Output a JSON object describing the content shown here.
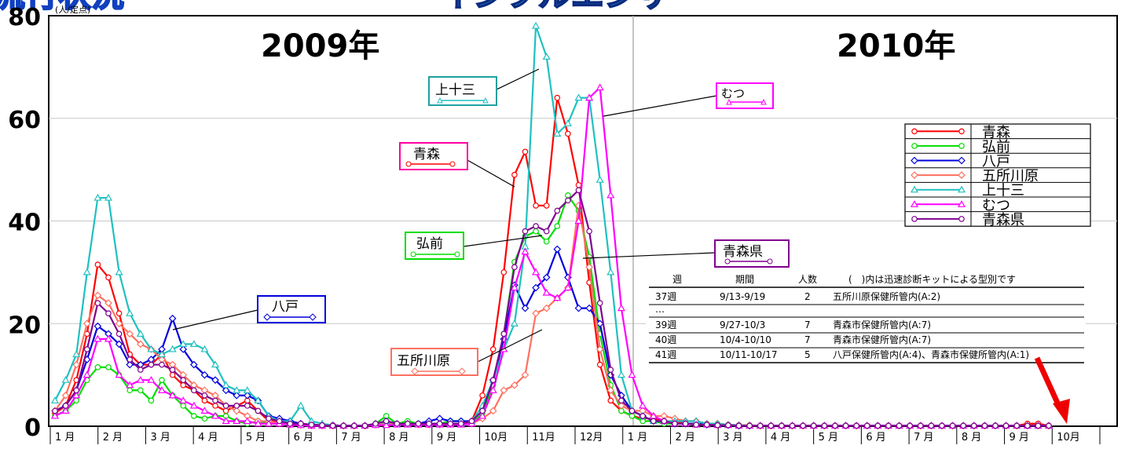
{
  "header": {
    "banner_left": "流行状況",
    "banner_right": "インフルエンザ"
  },
  "chart_data": {
    "type": "line",
    "ylabel": "(人/定点)",
    "ylim": [
      0,
      80
    ],
    "yticks": [
      0,
      20,
      40,
      60,
      80
    ],
    "grid": true,
    "legend_position": "right",
    "years": [
      "2009年",
      "2010年"
    ],
    "months": [
      "1 月",
      "2 月",
      "3 月",
      "4 月",
      "5 月",
      "6 月",
      "7 月",
      "8 月",
      "9 月",
      "10月",
      "11月",
      "12月",
      "1 月",
      "2 月",
      "3 月",
      "4 月",
      "5 月",
      "6 月",
      "7 月",
      "8 月",
      "9 月",
      "10月"
    ],
    "x_weeks": [
      1,
      2,
      3,
      4,
      5,
      6,
      7,
      8,
      9,
      10,
      11,
      12,
      13,
      14,
      15,
      16,
      17,
      18,
      19,
      20,
      21,
      22,
      23,
      24,
      25,
      26,
      27,
      28,
      29,
      30,
      31,
      32,
      33,
      34,
      35,
      36,
      37,
      38,
      39,
      40,
      41,
      42,
      43,
      44,
      45,
      46,
      47,
      48,
      49,
      50,
      51,
      52,
      53,
      54,
      55,
      56,
      57,
      58,
      59,
      60,
      61,
      62,
      63,
      64,
      65,
      66,
      67,
      68,
      69,
      70,
      71,
      72,
      73,
      74,
      75,
      76,
      77,
      78,
      79,
      80,
      81,
      82,
      83,
      84,
      85,
      86,
      87,
      88,
      89,
      90,
      91,
      92,
      93,
      94
    ],
    "series": [
      {
        "name": "青森",
        "color": "#ff0000",
        "marker": "circle",
        "values": [
          2.5,
          4,
          9,
          18,
          31.5,
          29,
          22,
          14,
          12,
          12,
          14,
          10,
          8,
          7,
          5,
          4,
          3,
          4,
          5,
          3,
          1,
          1,
          0.5,
          0.5,
          0.3,
          0.2,
          0.2,
          0.1,
          0.1,
          0.1,
          0.2,
          0.5,
          0.5,
          0.5,
          0.5,
          0.5,
          0.5,
          0.5,
          0.5,
          1,
          6,
          15,
          30,
          49,
          53.5,
          43,
          43,
          64,
          57,
          47,
          28,
          12,
          5,
          3,
          2,
          1.5,
          1.5,
          1,
          1,
          0.5,
          0.5,
          0.3,
          0.3,
          0.2,
          0.2,
          0.1,
          0.1,
          0.1,
          0.1,
          0.1,
          0.1,
          0.1,
          0.1,
          0.1,
          0.1,
          0.1,
          0.1,
          0.1,
          0.1,
          0.1,
          0.1,
          0.1,
          0.1,
          0.1,
          0.1,
          0.1,
          0.1,
          0.1,
          0.1,
          0.1,
          0.1,
          0.5,
          0.5,
          0.1
        ]
      },
      {
        "name": "弘前",
        "color": "#00dd00",
        "marker": "circle",
        "values": [
          2,
          3,
          5,
          9,
          11.5,
          11.5,
          10,
          7,
          7,
          5,
          9,
          6,
          4,
          2,
          1.5,
          2,
          2,
          1,
          0.5,
          1,
          0.5,
          0.5,
          0.3,
          0.2,
          0.1,
          0.1,
          0.1,
          0.1,
          0.1,
          0.1,
          0.5,
          2,
          0.5,
          1,
          0.5,
          0.5,
          0.5,
          1,
          1,
          0.5,
          2.5,
          8,
          18,
          32,
          37,
          38,
          36,
          39,
          45,
          42,
          33,
          18,
          8,
          3,
          2,
          1,
          1,
          0.5,
          0.5,
          0.5,
          0.5,
          0.5,
          0.5,
          0.3,
          0.2,
          0.2,
          0.1,
          0.1,
          0.1,
          0.1,
          0.1,
          0.1,
          0.1,
          0.1,
          0.1,
          0.1,
          0.1,
          0.1,
          0.1,
          0.1,
          0.1,
          0.1,
          0.1,
          0.1,
          0.1,
          0.1,
          0.1,
          0.1,
          0.1,
          0.1,
          0.1,
          0.1,
          0.1,
          0.1
        ]
      },
      {
        "name": "八戸",
        "color": "#0000dd",
        "marker": "diamond",
        "values": [
          3,
          4,
          7,
          13,
          19.5,
          18,
          16,
          12,
          12,
          13,
          15,
          21,
          15,
          12,
          10,
          9,
          7,
          6,
          6,
          5,
          2,
          1.5,
          1,
          0.5,
          0.3,
          0.2,
          0.2,
          0.1,
          0.1,
          0.1,
          0.5,
          1,
          0.5,
          0.5,
          0.5,
          1,
          1.5,
          1,
          1,
          1,
          3,
          9,
          17,
          27.5,
          23,
          27,
          29,
          34.5,
          29,
          23,
          23,
          20,
          10,
          6,
          3,
          2,
          1,
          1,
          0.5,
          0.5,
          0.5,
          0.3,
          0.3,
          0.2,
          0.1,
          0.1,
          0.1,
          0.1,
          0.1,
          0.1,
          0.1,
          0.1,
          0.1,
          0.1,
          0.1,
          0.1,
          0.1,
          0.1,
          0.1,
          0.1,
          0.1,
          0.1,
          0.1,
          0.1,
          0.1,
          0.1,
          0.1,
          0.1,
          0.1,
          0.1,
          0.1,
          0.1,
          0.1,
          0.1
        ]
      },
      {
        "name": "五所川原",
        "color": "#ff7060",
        "marker": "diamond",
        "values": [
          3,
          6,
          12,
          20,
          25.5,
          24,
          20,
          18,
          16,
          15,
          13,
          12,
          10,
          8,
          7,
          6,
          4,
          3,
          2,
          1,
          1,
          0.5,
          0.3,
          0.2,
          0.1,
          0.1,
          0.1,
          0.1,
          0.1,
          0.1,
          0.5,
          0.5,
          0.5,
          0.5,
          0.3,
          0.3,
          0.3,
          0.5,
          0.5,
          0.5,
          1.5,
          3,
          7,
          8,
          10,
          22,
          23,
          25,
          27,
          43,
          31,
          15,
          7,
          4,
          3,
          3,
          2,
          2,
          1.5,
          1,
          1,
          0.5,
          0.5,
          0.3,
          0.2,
          0.2,
          0.1,
          0.1,
          0.1,
          0.1,
          0.1,
          0.1,
          0.1,
          0.1,
          0.1,
          0.1,
          0.1,
          0.1,
          0.1,
          0.1,
          0.1,
          0.1,
          0.1,
          0.1,
          0.1,
          0.1,
          0.1,
          0.1,
          0.1,
          0.1,
          0.1,
          0.1,
          0.1,
          0.1
        ]
      },
      {
        "name": "上十三",
        "color": "#20c0c0",
        "marker": "triangle",
        "values": [
          5,
          9,
          14,
          30,
          44.5,
          44.5,
          30,
          22,
          18,
          15,
          14,
          15,
          16,
          16,
          15,
          12,
          8,
          7,
          7,
          5,
          2,
          1,
          1,
          4,
          1,
          0.5,
          0.2,
          0.1,
          0.1,
          0.1,
          0.5,
          1,
          0.5,
          0.5,
          0.5,
          0.5,
          0.5,
          0.5,
          0.5,
          1,
          4,
          9,
          15,
          20,
          35,
          78,
          72,
          57,
          59,
          64,
          64,
          48,
          30,
          10,
          3,
          2,
          1,
          1,
          1,
          1,
          1,
          0.5,
          0.5,
          0.3,
          0.2,
          0.1,
          0.1,
          0.1,
          0.1,
          0.1,
          0.1,
          0.1,
          0.1,
          0.1,
          0.1,
          0.1,
          0.1,
          0.1,
          0.1,
          0.1,
          0.1,
          0.1,
          0.1,
          0.1,
          0.1,
          0.1,
          0.1,
          0.1,
          0.1,
          0.1,
          0.1,
          0.1,
          0.1,
          0.1
        ]
      },
      {
        "name": "むつ",
        "color": "#ff00ff",
        "marker": "triangle",
        "values": [
          2,
          3,
          6,
          10,
          17,
          17,
          10,
          8,
          9,
          9,
          7,
          6,
          5,
          4,
          3,
          2,
          1,
          1,
          1,
          0.5,
          0.5,
          0.5,
          0.3,
          0.2,
          0.1,
          0.1,
          0.1,
          0.1,
          0.1,
          0.1,
          0.2,
          0.2,
          0.3,
          0.3,
          0.3,
          0.3,
          0.3,
          0.3,
          0.3,
          0.5,
          2,
          7,
          15,
          27,
          34,
          30,
          26,
          25,
          27,
          40,
          64,
          66,
          45,
          23,
          10,
          4,
          2,
          1,
          0.5,
          0.5,
          0.3,
          0.3,
          0.2,
          0.2,
          0.1,
          0.1,
          0.1,
          0.1,
          0.1,
          0.1,
          0.1,
          0.1,
          0.1,
          0.1,
          0.1,
          0.1,
          0.1,
          0.1,
          0.1,
          0.1,
          0.1,
          0.1,
          0.1,
          0.1,
          0.1,
          0.1,
          0.1,
          0.1,
          0.1,
          0.1,
          0.1,
          0.1,
          0.1,
          0.1
        ]
      },
      {
        "name": "青森県",
        "color": "#800090",
        "marker": "circle",
        "values": [
          3,
          4,
          7,
          15,
          24,
          22,
          18,
          13,
          11,
          12,
          12,
          11,
          9,
          7,
          6,
          5,
          4,
          4,
          4,
          3,
          1.5,
          1,
          0.5,
          0.5,
          0.3,
          0.2,
          0.1,
          0.1,
          0.1,
          0.1,
          0.5,
          1,
          0.5,
          0.5,
          0.5,
          0.5,
          0.5,
          0.5,
          0.5,
          1,
          3,
          9,
          18,
          31,
          38,
          39,
          38,
          42,
          44,
          46,
          38,
          24,
          11,
          5,
          3,
          2,
          1,
          1,
          0.5,
          0.5,
          0.3,
          0.3,
          0.2,
          0.2,
          0.1,
          0.1,
          0.1,
          0.1,
          0.1,
          0.1,
          0.1,
          0.1,
          0.1,
          0.1,
          0.1,
          0.1,
          0.1,
          0.1,
          0.1,
          0.1,
          0.1,
          0.1,
          0.1,
          0.1,
          0.1,
          0.1,
          0.1,
          0.1,
          0.1,
          0.1,
          0.1,
          0.1,
          0.1,
          0.1
        ]
      }
    ],
    "callouts": [
      "上十三",
      "むつ",
      "青森",
      "弘前",
      "青森県",
      "八戸",
      "五所川原"
    ]
  },
  "table": {
    "headers": [
      "週",
      "期間",
      "人数",
      "(　)内は迅速診断キットによる型別です"
    ],
    "rows": [
      [
        "37週",
        "9/13-9/19",
        "2",
        "五所川原保健所管内(A:2)"
      ],
      [
        "…",
        "",
        "",
        ""
      ],
      [
        "39週",
        "9/27-10/3",
        "7",
        "青森市保健所管内(A:7)"
      ],
      [
        "40週",
        "10/4-10/10",
        "7",
        "青森市保健所管内(A:7)"
      ],
      [
        "41週",
        "10/11-10/17",
        "5",
        "八戸保健所管内(A:4)、青森市保健所管内(A:1)"
      ]
    ]
  }
}
